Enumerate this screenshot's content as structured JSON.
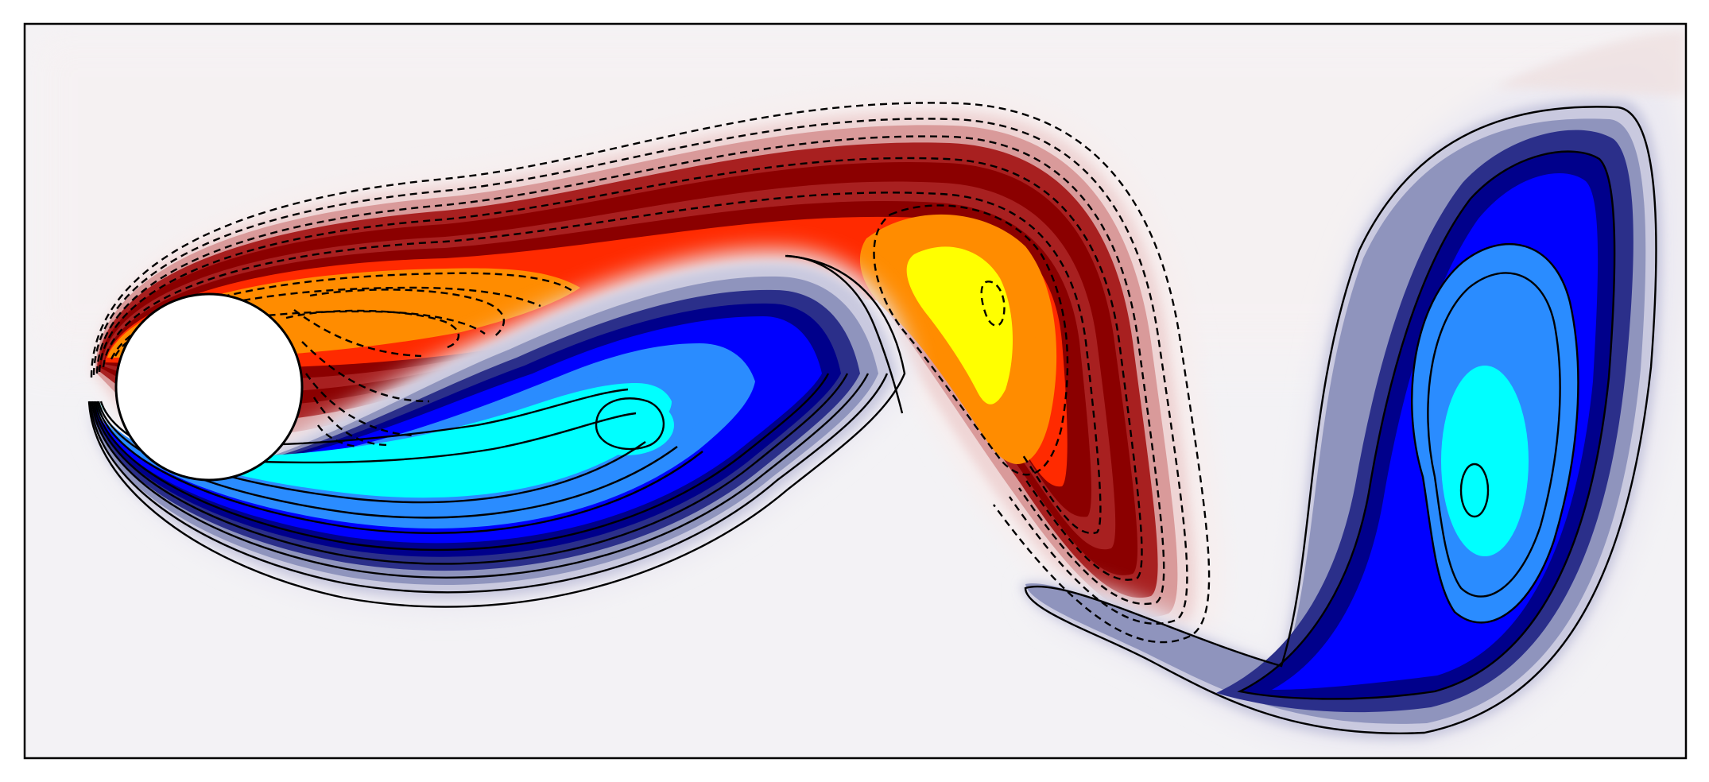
{
  "figure": {
    "kind": "vorticity contour plot of flow past a cylinder (vortex street)",
    "colors": {
      "background": "#ffffff",
      "field_neutral": "#f3f2f5",
      "positive_ramp": [
        "#f7eeee",
        "#efd5d5",
        "#d99a9a",
        "#a82020",
        "#8b0000",
        "#ff2a00",
        "#ff8c00",
        "#ffff00"
      ],
      "negative_ramp": [
        "#eceaf2",
        "#c9c9df",
        "#8f94bd",
        "#2b2f8a",
        "#00008b",
        "#0000ff",
        "#2a8cff",
        "#00ffff"
      ],
      "contour_line": "#000000",
      "cylinder": "#ffffff",
      "frame": "#000000"
    },
    "contours": {
      "positive_style": "dashed",
      "negative_style": "solid"
    }
  }
}
